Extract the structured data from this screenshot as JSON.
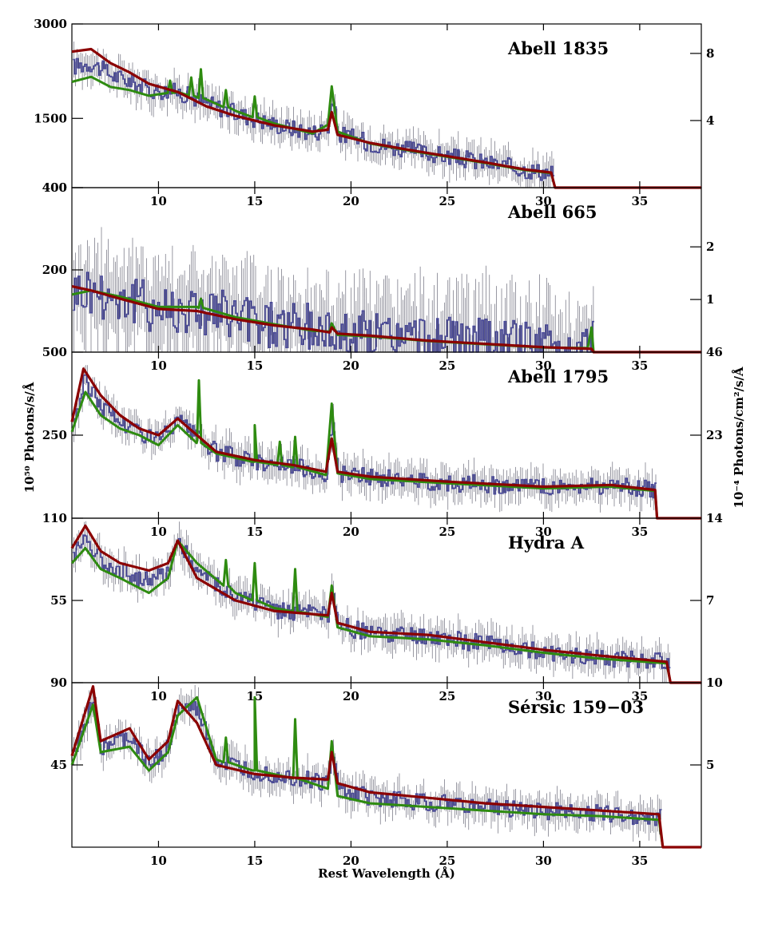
{
  "chart_data": {
    "type": "line",
    "xlabel": "Rest Wavelength (Å)",
    "ylabel_left": "10⁵⁰ Photons/s/Å",
    "ylabel_right": "10⁻⁴ Photons/cm²/s/Å",
    "xlim": [
      5.5,
      38.2
    ],
    "x_ticks": [
      "10",
      "15",
      "20",
      "25",
      "30",
      "35"
    ],
    "series_colors": {
      "data": "#4a4a9a",
      "model_green": "#2e8b10",
      "model_red": "#8b0000"
    },
    "panels": [
      {
        "title": "Abell 1835",
        "ylim": [
          400,
          3000
        ],
        "left_ticks": [
          "3000",
          "1500",
          "400"
        ],
        "right_ticks": [
          "8",
          "4"
        ],
        "cutoff": 30.6,
        "red": [
          [
            5.5,
            2560
          ],
          [
            6.5,
            2600
          ],
          [
            7.5,
            2380
          ],
          [
            8.5,
            2230
          ],
          [
            9.5,
            2050
          ],
          [
            11,
            1920
          ],
          [
            12.5,
            1690
          ],
          [
            14,
            1540
          ],
          [
            16,
            1390
          ],
          [
            18,
            1290
          ],
          [
            18.8,
            1320
          ],
          [
            19,
            1600
          ],
          [
            19.3,
            1240
          ],
          [
            21,
            1110
          ],
          [
            23,
            1000
          ],
          [
            25,
            900
          ],
          [
            27,
            800
          ],
          [
            29,
            690
          ],
          [
            30.4,
            640
          ]
        ],
        "green": [
          [
            5.5,
            2080
          ],
          [
            6.5,
            2160
          ],
          [
            7.5,
            2000
          ],
          [
            8.5,
            1950
          ],
          [
            9.5,
            1860
          ],
          [
            11,
            1920
          ],
          [
            12.5,
            1800
          ],
          [
            14,
            1620
          ],
          [
            16,
            1420
          ],
          [
            18,
            1260
          ],
          [
            18.8,
            1400
          ],
          [
            19,
            2010
          ],
          [
            19.3,
            1290
          ],
          [
            21,
            1100
          ],
          [
            23,
            990
          ],
          [
            25,
            890
          ],
          [
            27,
            790
          ],
          [
            29,
            680
          ],
          [
            30.4,
            630
          ]
        ],
        "peaks_green": [
          [
            10.6,
            2100
          ],
          [
            11.7,
            2150
          ],
          [
            12.2,
            2280
          ],
          [
            13.5,
            1950
          ],
          [
            15,
            1850
          ]
        ]
      },
      {
        "title": "Abell 665",
        "ylim": [
          0,
          400
        ],
        "left_ticks": [
          "400",
          "200"
        ],
        "right_ticks": [
          "2",
          "1"
        ],
        "cutoff": 32.6,
        "red": [
          [
            5.5,
            160
          ],
          [
            6.5,
            150
          ],
          [
            8,
            130
          ],
          [
            10,
            105
          ],
          [
            12,
            100
          ],
          [
            14,
            80
          ],
          [
            16,
            65
          ],
          [
            18,
            55
          ],
          [
            18.9,
            48
          ],
          [
            19,
            60
          ],
          [
            19.3,
            45
          ],
          [
            21,
            40
          ],
          [
            24,
            28
          ],
          [
            27,
            20
          ],
          [
            30,
            12
          ],
          [
            32.5,
            8
          ]
        ],
        "green": [
          [
            5.5,
            140
          ],
          [
            6.5,
            150
          ],
          [
            8,
            135
          ],
          [
            10,
            110
          ],
          [
            12,
            110
          ],
          [
            14,
            85
          ],
          [
            16,
            68
          ],
          [
            18,
            52
          ],
          [
            18.9,
            50
          ],
          [
            19,
            70
          ],
          [
            19.3,
            42
          ],
          [
            21,
            38
          ],
          [
            24,
            27
          ],
          [
            27,
            19
          ],
          [
            30,
            11
          ],
          [
            32.3,
            10
          ],
          [
            32.5,
            60
          ]
        ],
        "peaks_green": [
          [
            12.2,
            130
          ]
        ]
      },
      {
        "title": "Abell 1795",
        "ylim": [
          0,
          500
        ],
        "left_ticks": [
          "500",
          "250"
        ],
        "right_ticks": [
          "46",
          "23"
        ],
        "cutoff": 35.9,
        "red": [
          [
            5.5,
            290
          ],
          [
            6.1,
            450
          ],
          [
            7,
            370
          ],
          [
            8,
            310
          ],
          [
            9,
            270
          ],
          [
            10,
            250
          ],
          [
            11,
            300
          ],
          [
            12,
            250
          ],
          [
            13,
            200
          ],
          [
            15,
            175
          ],
          [
            17,
            160
          ],
          [
            18.7,
            140
          ],
          [
            19,
            240
          ],
          [
            19.3,
            140
          ],
          [
            21,
            125
          ],
          [
            25,
            110
          ],
          [
            30,
            95
          ],
          [
            33.5,
            100
          ],
          [
            35.8,
            85
          ]
        ],
        "green": [
          [
            5.5,
            260
          ],
          [
            6.2,
            380
          ],
          [
            7,
            310
          ],
          [
            8,
            270
          ],
          [
            9,
            250
          ],
          [
            10,
            220
          ],
          [
            11,
            280
          ],
          [
            12,
            230
          ],
          [
            13,
            195
          ],
          [
            15,
            170
          ],
          [
            17,
            155
          ],
          [
            18.7,
            130
          ],
          [
            19,
            345
          ],
          [
            19.3,
            135
          ],
          [
            21,
            118
          ],
          [
            25,
            105
          ],
          [
            30,
            90
          ],
          [
            33.5,
            95
          ],
          [
            35.8,
            82
          ]
        ],
        "peaks_green": [
          [
            12.1,
            415
          ],
          [
            15,
            280
          ],
          [
            16.3,
            230
          ],
          [
            17.1,
            245
          ]
        ]
      },
      {
        "title": "Hydra A",
        "ylim": [
          0,
          110
        ],
        "left_ticks": [
          "110",
          "55"
        ],
        "right_ticks": [
          "14",
          "7"
        ],
        "cutoff": 36.6,
        "red": [
          [
            5.5,
            90
          ],
          [
            6.2,
            105
          ],
          [
            7,
            88
          ],
          [
            8,
            80
          ],
          [
            9.5,
            75
          ],
          [
            10.5,
            80
          ],
          [
            11,
            95
          ],
          [
            12,
            70
          ],
          [
            14,
            55
          ],
          [
            16,
            48
          ],
          [
            18.8,
            45
          ],
          [
            19,
            60
          ],
          [
            19.3,
            40
          ],
          [
            21,
            34
          ],
          [
            24,
            32
          ],
          [
            27,
            27
          ],
          [
            30,
            22
          ],
          [
            33,
            18
          ],
          [
            36.4,
            14
          ]
        ],
        "green": [
          [
            5.5,
            80
          ],
          [
            6.2,
            90
          ],
          [
            7,
            76
          ],
          [
            8,
            70
          ],
          [
            9.5,
            60
          ],
          [
            10.5,
            70
          ],
          [
            11,
            95
          ],
          [
            12,
            80
          ],
          [
            14,
            60
          ],
          [
            16,
            50
          ],
          [
            18.8,
            44
          ],
          [
            19,
            65
          ],
          [
            19.3,
            37
          ],
          [
            21,
            31
          ],
          [
            24,
            29
          ],
          [
            27,
            25
          ],
          [
            30,
            20
          ],
          [
            33,
            16
          ],
          [
            36.4,
            13
          ]
        ],
        "peaks_green": [
          [
            13.5,
            82
          ],
          [
            15,
            80
          ],
          [
            17.1,
            76
          ]
        ]
      },
      {
        "title": "Sérsic 159−03",
        "ylim": [
          0,
          90
        ],
        "left_ticks": [
          "90",
          "45"
        ],
        "right_ticks": [
          "10",
          "5"
        ],
        "cutoff": 36.2,
        "red": [
          [
            5.5,
            50
          ],
          [
            6.6,
            88
          ],
          [
            7,
            58
          ],
          [
            8.5,
            65
          ],
          [
            9.5,
            48
          ],
          [
            10.5,
            58
          ],
          [
            11,
            80
          ],
          [
            12,
            68
          ],
          [
            13,
            45
          ],
          [
            15,
            40
          ],
          [
            17,
            38
          ],
          [
            18.8,
            37
          ],
          [
            19,
            52
          ],
          [
            19.3,
            35
          ],
          [
            21,
            30
          ],
          [
            24,
            27
          ],
          [
            27,
            24
          ],
          [
            30,
            22
          ],
          [
            33,
            20
          ],
          [
            36,
            18
          ]
        ],
        "green": [
          [
            5.5,
            45
          ],
          [
            6.6,
            78
          ],
          [
            7,
            52
          ],
          [
            8.5,
            55
          ],
          [
            9.5,
            42
          ],
          [
            10.5,
            52
          ],
          [
            11,
            72
          ],
          [
            12,
            82
          ],
          [
            13,
            48
          ],
          [
            15,
            42
          ],
          [
            17,
            38
          ],
          [
            18.8,
            32
          ],
          [
            19,
            58
          ],
          [
            19.3,
            28
          ],
          [
            21,
            24
          ],
          [
            24,
            22
          ],
          [
            27,
            20
          ],
          [
            30,
            18
          ],
          [
            33,
            17
          ],
          [
            36,
            15
          ]
        ],
        "peaks_green": [
          [
            13.5,
            60
          ],
          [
            15,
            82
          ],
          [
            17.1,
            70
          ]
        ]
      }
    ]
  }
}
